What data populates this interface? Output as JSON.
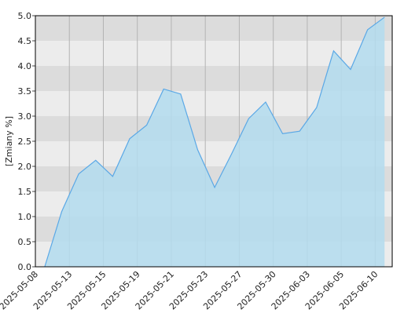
{
  "chart_data": {
    "type": "area",
    "y_label": "[Zmiany %]",
    "x": [
      0,
      1,
      2,
      3,
      4,
      5,
      6,
      7,
      8,
      9,
      10,
      11,
      12,
      13,
      14,
      15,
      16,
      17,
      18,
      19,
      20
    ],
    "values": [
      0,
      1.1,
      1.85,
      2.12,
      1.8,
      2.55,
      2.82,
      3.54,
      3.44,
      2.33,
      1.58,
      2.25,
      2.95,
      3.28,
      2.65,
      2.7,
      3.17,
      4.3,
      3.93,
      4.72,
      4.97
    ],
    "color": "#5aa8e6",
    "fill": "#b3dcee",
    "xlim": [
      -0.55,
      20.45
    ],
    "xticks": [
      {
        "value": -0.55,
        "label": "2025-05-08"
      },
      {
        "value": 1.45,
        "label": "2025-05-13"
      },
      {
        "value": 3.45,
        "label": "2025-05-15"
      },
      {
        "value": 5.45,
        "label": "2025-05-19"
      },
      {
        "value": 7.45,
        "label": "2025-05-21"
      },
      {
        "value": 9.45,
        "label": "2025-05-23"
      },
      {
        "value": 11.45,
        "label": "2025-05-27"
      },
      {
        "value": 13.45,
        "label": "2025-05-30"
      },
      {
        "value": 15.45,
        "label": "2025-06-03"
      },
      {
        "value": 17.45,
        "label": "2025-06-05"
      },
      {
        "value": 19.45,
        "label": "2025-06-10"
      }
    ],
    "ylim": [
      0,
      5
    ],
    "yticks": [
      {
        "value": 0,
        "label": "0.0"
      },
      {
        "value": 0.5,
        "label": "0.5"
      },
      {
        "value": 1,
        "label": "1.0"
      },
      {
        "value": 1.5,
        "label": "1.5"
      },
      {
        "value": 2,
        "label": "2.0"
      },
      {
        "value": 2.5,
        "label": "2.5"
      },
      {
        "value": 3,
        "label": "3.0"
      },
      {
        "value": 3.5,
        "label": "3.5"
      },
      {
        "value": 4,
        "label": "4.0"
      },
      {
        "value": 4.5,
        "label": "4.5"
      },
      {
        "value": 5,
        "label": "5.0"
      }
    ],
    "grid": true
  }
}
